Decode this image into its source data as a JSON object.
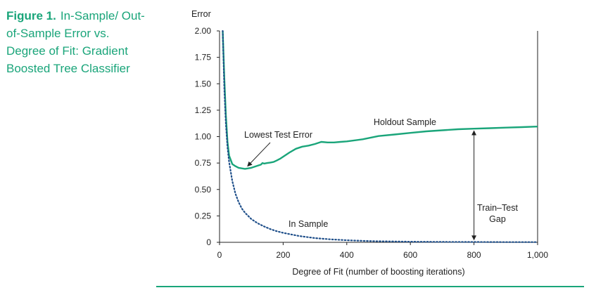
{
  "figure": {
    "label": "Figure 1.",
    "title": "In-Sample/ Out-of-Sample Error vs. Degree of Fit: Gradient Boosted Tree Classifier"
  },
  "chart_data": {
    "type": "line",
    "xlabel": "Degree of Fit (number of boosting iterations)",
    "ylabel": "Error",
    "xlim": [
      0,
      1000
    ],
    "ylim": [
      0,
      2.0
    ],
    "x_ticks": [
      0,
      200,
      400,
      600,
      800,
      1000
    ],
    "x_tick_labels": [
      "0",
      "200",
      "400",
      "600",
      "800",
      "1,000"
    ],
    "y_ticks": [
      0,
      0.25,
      0.5,
      0.75,
      1.0,
      1.25,
      1.5,
      1.75,
      2.0
    ],
    "y_tick_labels": [
      "0",
      "0.25",
      "0.50",
      "0.75",
      "1.00",
      "1.25",
      "1.50",
      "1.75",
      "2.00"
    ],
    "grid": false,
    "series": [
      {
        "name": "Holdout Sample",
        "style": "solid",
        "color": "#1aa57a",
        "x": [
          10,
          15,
          20,
          25,
          30,
          40,
          50,
          60,
          70,
          80,
          90,
          100,
          110,
          120,
          130,
          135,
          140,
          150,
          160,
          170,
          180,
          190,
          200,
          220,
          240,
          260,
          280,
          300,
          320,
          340,
          360,
          380,
          400,
          450,
          500,
          550,
          600,
          650,
          700,
          750,
          800,
          850,
          900,
          950,
          1000
        ],
        "y": [
          2.0,
          1.55,
          1.2,
          0.95,
          0.82,
          0.74,
          0.72,
          0.705,
          0.7,
          0.695,
          0.7,
          0.705,
          0.715,
          0.725,
          0.735,
          0.75,
          0.745,
          0.75,
          0.755,
          0.76,
          0.775,
          0.79,
          0.81,
          0.85,
          0.885,
          0.905,
          0.915,
          0.93,
          0.95,
          0.945,
          0.945,
          0.95,
          0.955,
          0.975,
          1.005,
          1.02,
          1.035,
          1.05,
          1.06,
          1.07,
          1.075,
          1.08,
          1.085,
          1.09,
          1.095
        ]
      },
      {
        "name": "In Sample",
        "style": "dotted",
        "color": "#1f4f8a",
        "x": [
          10,
          15,
          20,
          25,
          30,
          40,
          50,
          60,
          70,
          80,
          90,
          100,
          120,
          140,
          160,
          180,
          200,
          250,
          300,
          350,
          400,
          450,
          500,
          600,
          700,
          800,
          900,
          1000
        ],
        "y": [
          2.0,
          1.45,
          1.12,
          0.9,
          0.76,
          0.58,
          0.46,
          0.38,
          0.32,
          0.28,
          0.25,
          0.22,
          0.18,
          0.15,
          0.125,
          0.105,
          0.09,
          0.06,
          0.04,
          0.028,
          0.02,
          0.014,
          0.01,
          0.006,
          0.004,
          0.003,
          0.002,
          0.002
        ]
      }
    ],
    "annotations": {
      "lowest_test_error": "Lowest Test Error",
      "holdout_label": "Holdout Sample",
      "insample_label": "In Sample",
      "gap_line1": "Train–Test",
      "gap_line2": "Gap"
    }
  },
  "colors": {
    "accent": "#1aa57a",
    "in_sample": "#1f4f8a",
    "axis": "#222222"
  }
}
